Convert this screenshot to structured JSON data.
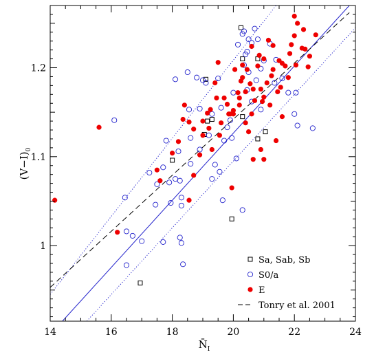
{
  "chart_data": {
    "type": "scatter",
    "title": "",
    "xlabel": "N̄",
    "xlabel_sub": "I",
    "ylabel": "(V−I)",
    "ylabel_sub": "0",
    "xlim": [
      14,
      24
    ],
    "ylim": [
      0.915,
      1.27
    ],
    "xticks": [
      14,
      16,
      18,
      20,
      22,
      24
    ],
    "yticks": [
      1,
      1.1,
      1.2
    ],
    "grid": false,
    "legend_position": "bottom-right",
    "legend": [
      {
        "label": "Sa, Sab, Sb",
        "marker": "square-open",
        "color": "#000000"
      },
      {
        "label": "S0/a",
        "marker": "circle-open",
        "color": "#2222cc"
      },
      {
        "label": "E",
        "marker": "circle-filled",
        "color": "#ee0000"
      },
      {
        "label": "Tonry et al. 2001",
        "marker": "dashed-line",
        "color": "#000000"
      }
    ],
    "lines": [
      {
        "style": "solid",
        "color": "#2222cc",
        "x": [
          14.4,
          23.8
        ],
        "y": [
          0.915,
          1.27
        ]
      },
      {
        "style": "dotted",
        "color": "#2222cc",
        "x": [
          14.0,
          21.4
        ],
        "y": [
          0.945,
          1.27
        ]
      },
      {
        "style": "dotted",
        "color": "#2222cc",
        "x": [
          15.2,
          24.0
        ],
        "y": [
          0.915,
          1.245
        ]
      },
      {
        "style": "dashed",
        "color": "#000000",
        "x": [
          14.0,
          23.8
        ],
        "y": [
          0.953,
          1.262
        ]
      }
    ],
    "series": [
      {
        "name": "Sa, Sab, Sb",
        "marker": "square-open",
        "color": "#000000",
        "x": [
          20.25,
          20.3,
          19.1,
          19.15,
          19.3,
          19.05,
          18.0,
          20.8,
          21.05,
          20.8,
          19.95,
          16.95,
          20.3
        ],
        "y": [
          1.245,
          1.21,
          1.187,
          1.14,
          1.142,
          1.125,
          1.096,
          1.12,
          1.128,
          1.21,
          1.03,
          0.958,
          1.145
        ]
      },
      {
        "name": "S0/a",
        "marker": "circle-open",
        "color": "#2222cc",
        "x": [
          16.1,
          16.45,
          16.5,
          16.7,
          17.0,
          17.25,
          17.45,
          17.7,
          17.8,
          17.9,
          17.95,
          18.1,
          18.2,
          18.25,
          18.3,
          18.35,
          18.5,
          18.55,
          18.6,
          18.8,
          18.9,
          19.0,
          19.1,
          19.2,
          19.3,
          19.4,
          19.5,
          19.55,
          19.7,
          19.8,
          19.9,
          20.0,
          20.15,
          20.3,
          20.35,
          20.4,
          20.5,
          20.6,
          20.7,
          20.8,
          20.9,
          21.0,
          21.2,
          21.4,
          21.6,
          21.8,
          22.0,
          22.1,
          22.6,
          18.25,
          18.3,
          18.3,
          17.5,
          16.5,
          18.9,
          19.3,
          19.95,
          20.45,
          20.6,
          20.75,
          20.9,
          20.45,
          20.5,
          20.35,
          19.65,
          18.1,
          18.6,
          21.35,
          22.05,
          17.7,
          19.6,
          20.1,
          20.3
        ],
        "y": [
          1.141,
          1.054,
          0.978,
          1.011,
          1.005,
          1.082,
          1.046,
          1.004,
          1.118,
          1.071,
          1.048,
          1.075,
          1.106,
          1.009,
          1.003,
          0.979,
          1.195,
          1.153,
          1.121,
          1.189,
          1.154,
          1.186,
          1.183,
          1.124,
          1.148,
          1.091,
          1.188,
          1.083,
          1.118,
          1.133,
          1.141,
          1.172,
          1.226,
          1.238,
          1.241,
          1.215,
          1.232,
          1.228,
          1.244,
          1.232,
          1.199,
          1.208,
          1.227,
          1.209,
          1.188,
          1.172,
          1.148,
          1.135,
          1.132,
          1.073,
          1.045,
          1.054,
          1.069,
          1.016,
          1.108,
          1.075,
          1.121,
          1.175,
          1.162,
          1.186,
          1.153,
          1.218,
          1.195,
          1.203,
          1.051,
          1.187,
          1.092,
          1.183,
          1.172,
          1.088,
          1.155,
          1.098,
          1.04
        ]
      },
      {
        "name": "E",
        "marker": "circle-filled",
        "color": "#ee0000",
        "x": [
          14.15,
          15.6,
          16.2,
          17.5,
          18.0,
          18.2,
          18.35,
          18.55,
          18.7,
          19.0,
          19.15,
          19.3,
          19.5,
          19.7,
          19.85,
          20.0,
          20.15,
          20.3,
          20.45,
          20.6,
          20.8,
          21.0,
          21.15,
          21.3,
          21.5,
          21.7,
          21.9,
          22.1,
          22.3,
          22.5,
          22.7,
          19.25,
          19.45,
          19.6,
          19.8,
          20.0,
          20.2,
          20.4,
          20.55,
          20.7,
          20.9,
          21.1,
          21.25,
          21.45,
          21.6,
          21.85,
          22.0,
          22.25,
          22.45,
          19.2,
          19.55,
          19.9,
          20.25,
          20.6,
          20.95,
          21.2,
          21.55,
          21.8,
          22.05,
          22.35,
          20.05,
          20.3,
          20.65,
          21.0,
          21.3,
          18.55,
          19.0,
          20.5,
          20.9,
          21.4,
          18.9,
          18.7,
          17.6,
          18.4,
          19.95,
          21.0,
          20.65,
          20.4,
          22.0,
          20.2,
          19.4,
          20.85,
          21.6
        ],
        "y": [
          1.051,
          1.133,
          1.015,
          1.085,
          1.104,
          1.117,
          1.142,
          1.051,
          1.131,
          1.124,
          1.149,
          1.108,
          1.206,
          1.166,
          1.148,
          1.152,
          1.172,
          1.189,
          1.198,
          1.224,
          1.202,
          1.21,
          1.231,
          1.225,
          1.208,
          1.202,
          1.226,
          1.25,
          1.243,
          1.213,
          1.237,
          1.153,
          1.166,
          1.138,
          1.159,
          1.148,
          1.158,
          1.173,
          1.182,
          1.163,
          1.176,
          1.183,
          1.191,
          1.173,
          1.205,
          1.216,
          1.236,
          1.222,
          1.201,
          1.132,
          1.124,
          1.148,
          1.185,
          1.148,
          1.162,
          1.158,
          1.178,
          1.189,
          1.203,
          1.221,
          1.198,
          1.203,
          1.176,
          1.167,
          1.198,
          1.139,
          1.14,
          1.128,
          1.108,
          1.118,
          1.102,
          1.079,
          1.073,
          1.158,
          1.065,
          1.097,
          1.097,
          1.138,
          1.258,
          1.166,
          1.183,
          1.214,
          1.145
        ]
      }
    ]
  }
}
